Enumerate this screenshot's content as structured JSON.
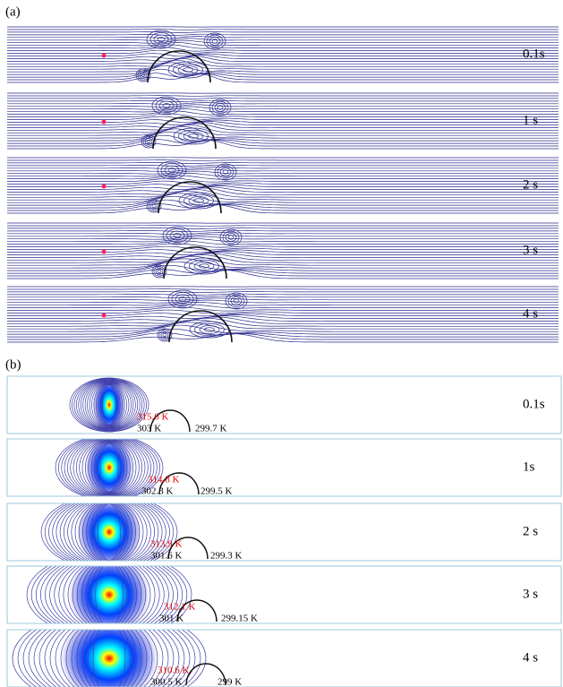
{
  "panel_a": {
    "label": "(a)",
    "frames": [
      {
        "time": "0.1s"
      },
      {
        "time": "1 s"
      },
      {
        "time": "2 s"
      },
      {
        "time": "3 s"
      },
      {
        "time": "4 s"
      }
    ]
  },
  "panel_b": {
    "label": "(b)",
    "frames": [
      {
        "time": "0.1s",
        "max_temp": "315.6 K",
        "near_temp": "303 K",
        "far_temp": "299.7 K"
      },
      {
        "time": "1s",
        "max_temp": "314.8 K",
        "near_temp": "302.3 K",
        "far_temp": "299.5 K"
      },
      {
        "time": "2 s",
        "max_temp": "313.9 K",
        "near_temp": "301.6 K",
        "far_temp": "299.3 K"
      },
      {
        "time": "3 s",
        "max_temp": "312.1 K",
        "near_temp": "301 K",
        "far_temp": "299.15 K"
      },
      {
        "time": "4 s",
        "max_temp": "310.6 K",
        "near_temp": "300.5 K",
        "far_temp": "299 K"
      }
    ]
  }
}
